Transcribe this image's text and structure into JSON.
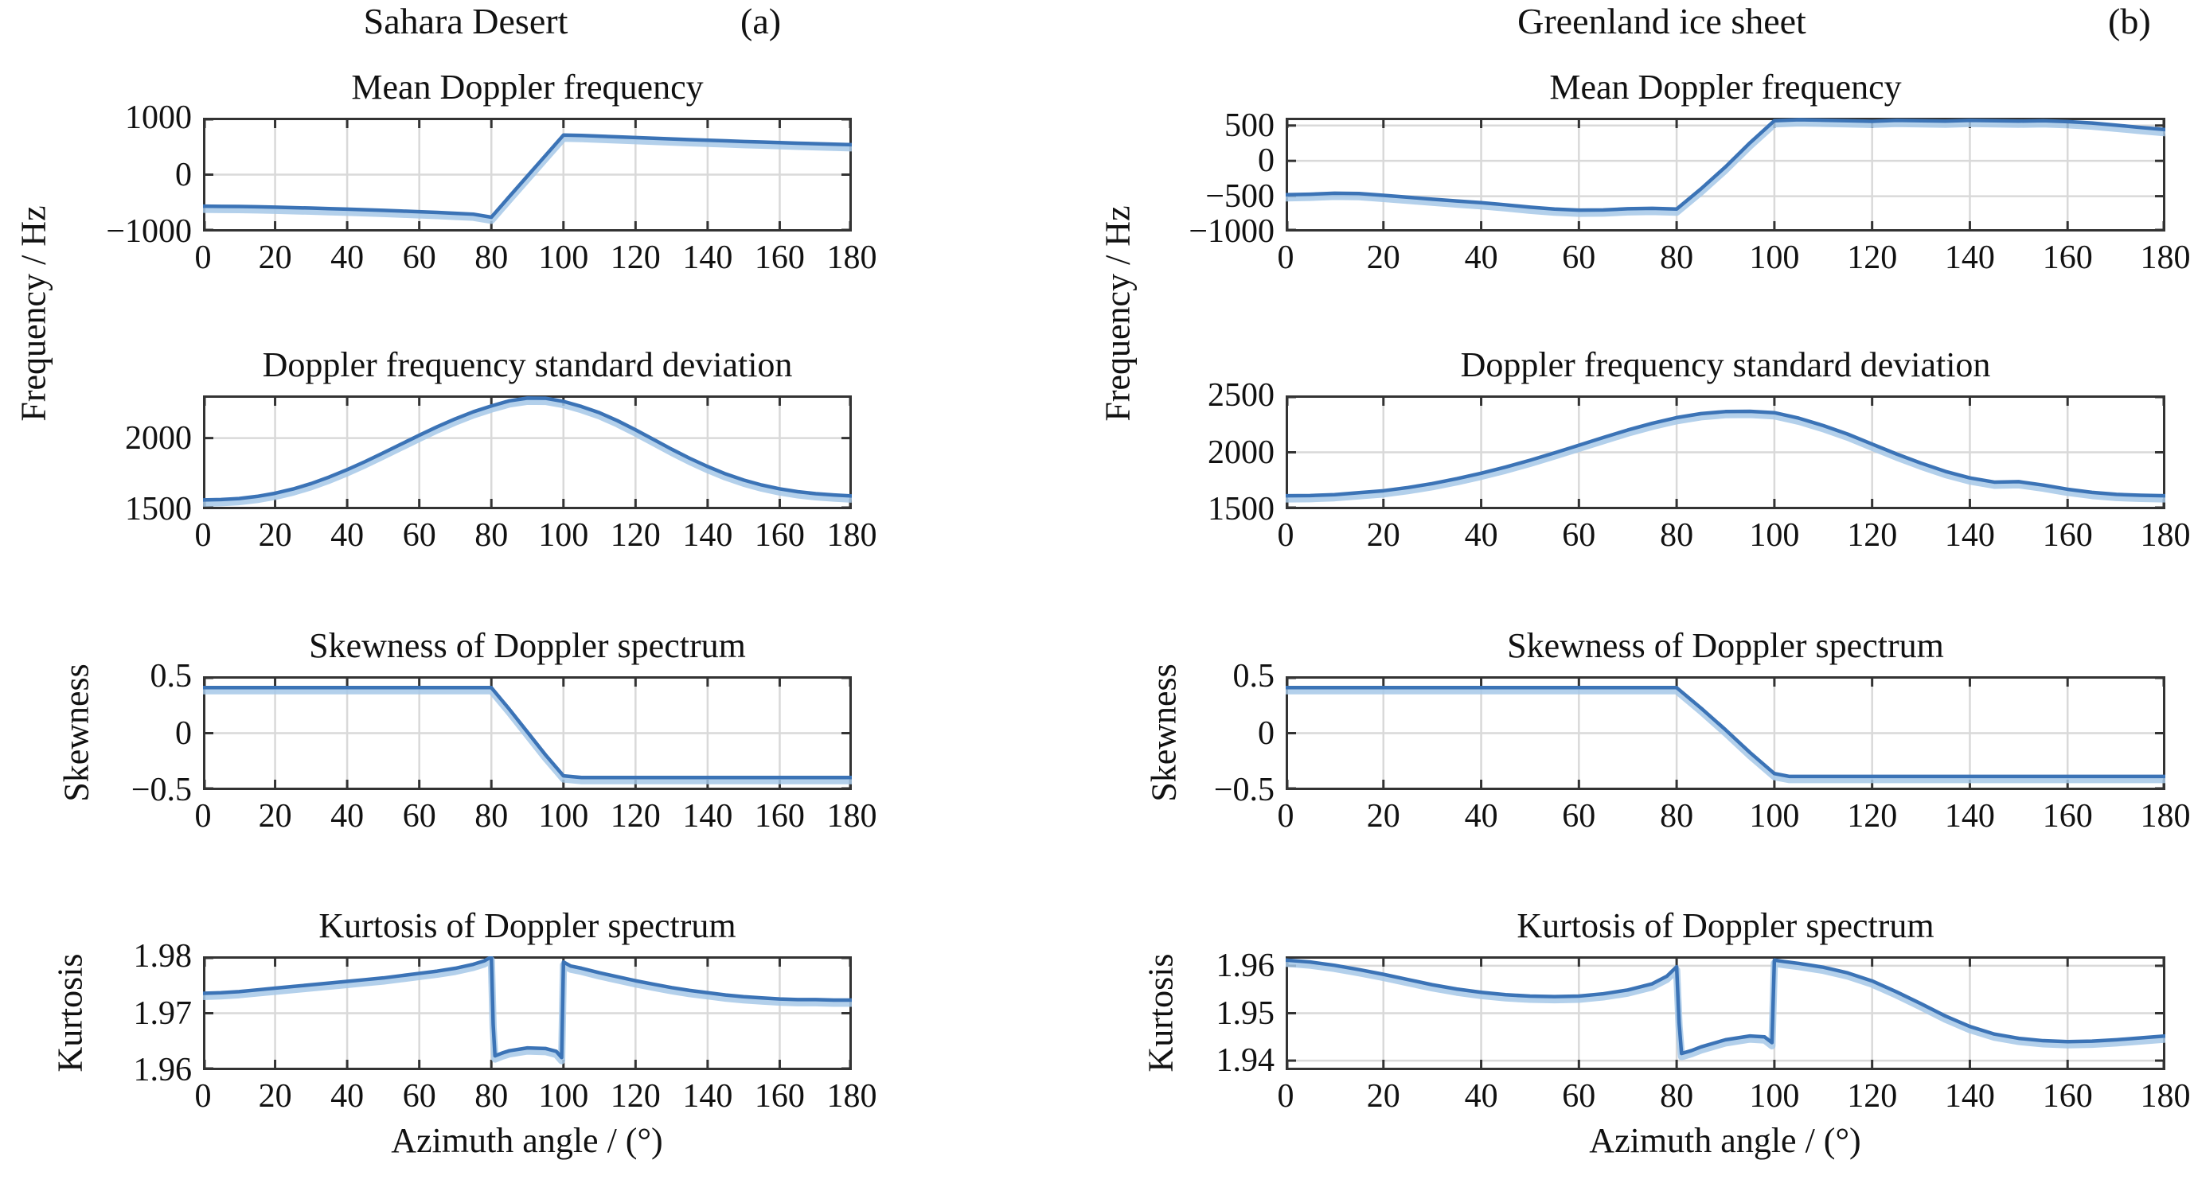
{
  "header": {
    "left": {
      "title": "Sahara Desert",
      "tag": "(a)"
    },
    "right": {
      "title": "Greenland ice sheet",
      "tag": "(b)"
    }
  },
  "axis_labels": {
    "frequency": "Frequency / Hz",
    "skewness": "Skewness",
    "kurtosis": "Kurtosis",
    "azimuth": "Azimuth angle / (°)"
  },
  "style": {
    "line_color": "#3b73b6",
    "line_halo": "#a6c8e8",
    "grid_color": "#d9d9d9",
    "box_color": "#333333",
    "text_color": "#111111",
    "background": "#ffffff"
  },
  "x_axis": {
    "lim": [
      0,
      180
    ],
    "ticks": [
      0,
      20,
      40,
      60,
      80,
      100,
      120,
      140,
      160,
      180
    ],
    "grid": [
      20,
      40,
      60,
      80,
      100,
      120,
      140,
      160
    ]
  },
  "chart_data": [
    {
      "type": "line",
      "panel": "a",
      "title": "Mean Doppler frequency",
      "ylabel": "Frequency / Hz",
      "ylim": [
        -1000,
        1000
      ],
      "yticks": [
        {
          "v": 1000,
          "label": "1000"
        },
        {
          "v": 0,
          "label": "0"
        },
        {
          "v": -1000,
          "label": "−1000"
        }
      ],
      "ygrid": [
        0
      ],
      "x": [
        0,
        5,
        10,
        15,
        20,
        25,
        30,
        35,
        40,
        45,
        50,
        55,
        60,
        65,
        70,
        75,
        80,
        85,
        90,
        95,
        100,
        105,
        110,
        115,
        120,
        125,
        130,
        135,
        140,
        145,
        150,
        155,
        160,
        165,
        170,
        175,
        180
      ],
      "y": [
        -555,
        -558,
        -560,
        -565,
        -572,
        -580,
        -588,
        -597,
        -607,
        -617,
        -628,
        -640,
        -652,
        -665,
        -680,
        -695,
        -748,
        -385,
        -25,
        335,
        695,
        688,
        676,
        664,
        652,
        640,
        628,
        616,
        605,
        594,
        583,
        573,
        563,
        553,
        544,
        535,
        527
      ]
    },
    {
      "type": "line",
      "panel": "a",
      "title": "Doppler frequency standard deviation",
      "ylabel": "Frequency / Hz",
      "ylim": [
        1500,
        2300
      ],
      "yticks": [
        {
          "v": 2000,
          "label": "2000"
        },
        {
          "v": 1500,
          "label": "1500"
        }
      ],
      "ygrid": [
        2000
      ],
      "x": [
        0,
        5,
        10,
        15,
        20,
        25,
        30,
        35,
        40,
        45,
        50,
        55,
        60,
        65,
        70,
        75,
        80,
        85,
        90,
        95,
        100,
        105,
        110,
        115,
        120,
        125,
        130,
        135,
        140,
        145,
        150,
        155,
        160,
        165,
        170,
        175,
        180
      ],
      "y": [
        1565,
        1568,
        1575,
        1590,
        1612,
        1642,
        1680,
        1726,
        1778,
        1835,
        1896,
        1958,
        2020,
        2080,
        2135,
        2185,
        2226,
        2262,
        2281,
        2280,
        2258,
        2222,
        2178,
        2122,
        2058,
        1990,
        1922,
        1858,
        1800,
        1748,
        1705,
        1670,
        1643,
        1623,
        1609,
        1600,
        1593
      ]
    },
    {
      "type": "line",
      "panel": "a",
      "title": "Skewness of Doppler spectrum",
      "ylabel": "Skewness",
      "ylim": [
        -0.5,
        0.5
      ],
      "yticks": [
        {
          "v": 0.5,
          "label": "0.5"
        },
        {
          "v": 0,
          "label": "0"
        },
        {
          "v": -0.5,
          "label": "−0.5"
        }
      ],
      "ygrid": [
        0
      ],
      "x": [
        0,
        80,
        85,
        90,
        95,
        100,
        105,
        180
      ],
      "y": [
        0.4,
        0.4,
        0.21,
        0.01,
        -0.19,
        -0.375,
        -0.39,
        -0.39
      ]
    },
    {
      "type": "line",
      "panel": "a",
      "title": "Kurtosis of Doppler spectrum",
      "ylabel": "Kurtosis",
      "ylim": [
        1.96,
        1.98
      ],
      "yticks": [
        {
          "v": 1.98,
          "label": "1.98"
        },
        {
          "v": 1.97,
          "label": "1.97"
        },
        {
          "v": 1.96,
          "label": "1.96"
        }
      ],
      "ygrid": [
        1.97
      ],
      "x": [
        0,
        5,
        10,
        15,
        20,
        25,
        30,
        35,
        40,
        45,
        50,
        55,
        60,
        65,
        70,
        75,
        78,
        80,
        80.5,
        81,
        83,
        85,
        90,
        95,
        98,
        99.5,
        100,
        102,
        105,
        110,
        115,
        120,
        125,
        130,
        135,
        140,
        145,
        150,
        155,
        160,
        165,
        170,
        175,
        180
      ],
      "y": [
        1.9735,
        1.9736,
        1.9738,
        1.9741,
        1.9744,
        1.9747,
        1.975,
        1.9753,
        1.9756,
        1.9759,
        1.9762,
        1.9766,
        1.977,
        1.9774,
        1.9779,
        1.9786,
        1.9792,
        1.9799,
        1.968,
        1.9625,
        1.963,
        1.9634,
        1.9639,
        1.9638,
        1.9633,
        1.9622,
        1.979,
        1.9783,
        1.9779,
        1.9771,
        1.9764,
        1.9757,
        1.9751,
        1.9745,
        1.974,
        1.9736,
        1.9732,
        1.9729,
        1.9727,
        1.9725,
        1.9724,
        1.9724,
        1.9723,
        1.9723
      ]
    },
    {
      "type": "line",
      "panel": "b",
      "title": "Mean Doppler frequency",
      "ylabel": "Frequency / Hz",
      "ylim": [
        -1000,
        610
      ],
      "yticks": [
        {
          "v": 500,
          "label": "500"
        },
        {
          "v": 0,
          "label": "0"
        },
        {
          "v": -500,
          "label": "−500"
        },
        {
          "v": -1000,
          "label": "−1000"
        }
      ],
      "ygrid": [
        500,
        0,
        -500
      ],
      "x": [
        0,
        5,
        10,
        15,
        20,
        25,
        30,
        35,
        40,
        45,
        50,
        55,
        60,
        65,
        70,
        75,
        80,
        85,
        90,
        95,
        100,
        105,
        110,
        115,
        120,
        125,
        130,
        135,
        140,
        145,
        150,
        155,
        160,
        165,
        170,
        175,
        180
      ],
      "y": [
        -480,
        -472,
        -458,
        -462,
        -488,
        -515,
        -542,
        -568,
        -592,
        -622,
        -655,
        -682,
        -698,
        -694,
        -678,
        -672,
        -682,
        -395,
        -85,
        255,
        568,
        582,
        575,
        568,
        560,
        574,
        568,
        562,
        574,
        568,
        562,
        568,
        555,
        535,
        505,
        472,
        443
      ]
    },
    {
      "type": "line",
      "panel": "b",
      "title": "Doppler frequency standard deviation",
      "ylabel": "Frequency / Hz",
      "ylim": [
        1500,
        2500
      ],
      "yticks": [
        {
          "v": 2500,
          "label": "2500"
        },
        {
          "v": 2000,
          "label": "2000"
        },
        {
          "v": 1500,
          "label": "1500"
        }
      ],
      "ygrid": [
        2000
      ],
      "x": [
        0,
        5,
        10,
        15,
        20,
        25,
        30,
        35,
        40,
        45,
        50,
        55,
        60,
        65,
        70,
        75,
        80,
        85,
        90,
        95,
        100,
        105,
        110,
        115,
        120,
        125,
        130,
        135,
        140,
        145,
        150,
        155,
        160,
        165,
        170,
        175,
        180
      ],
      "y": [
        1618,
        1620,
        1628,
        1645,
        1662,
        1690,
        1725,
        1768,
        1816,
        1870,
        1930,
        1995,
        2062,
        2130,
        2196,
        2255,
        2305,
        2340,
        2358,
        2360,
        2348,
        2300,
        2235,
        2160,
        2072,
        1985,
        1905,
        1832,
        1775,
        1738,
        1742,
        1712,
        1675,
        1648,
        1630,
        1622,
        1618
      ]
    },
    {
      "type": "line",
      "panel": "b",
      "title": "Skewness of Doppler spectrum",
      "ylabel": "Skewness",
      "ylim": [
        -0.5,
        0.5
      ],
      "yticks": [
        {
          "v": 0.5,
          "label": "0.5"
        },
        {
          "v": 0,
          "label": "0"
        },
        {
          "v": -0.5,
          "label": "−0.5"
        }
      ],
      "ygrid": [
        0
      ],
      "x": [
        0,
        80,
        85,
        90,
        95,
        100,
        103,
        180
      ],
      "y": [
        0.4,
        0.4,
        0.22,
        0.03,
        -0.17,
        -0.355,
        -0.38,
        -0.38
      ]
    },
    {
      "type": "line",
      "panel": "b",
      "title": "Kurtosis of Doppler spectrum",
      "ylabel": "Kurtosis",
      "ylim": [
        1.938,
        1.962
      ],
      "yticks": [
        {
          "v": 1.96,
          "label": "1.96"
        },
        {
          "v": 1.95,
          "label": "1.95"
        },
        {
          "v": 1.94,
          "label": "1.94"
        }
      ],
      "ygrid": [
        1.96,
        1.95,
        1.94
      ],
      "x": [
        0,
        5,
        10,
        15,
        20,
        25,
        30,
        35,
        40,
        45,
        50,
        55,
        60,
        65,
        70,
        75,
        78,
        80,
        80.5,
        81,
        83,
        85,
        90,
        95,
        98,
        99.5,
        100,
        102,
        105,
        110,
        115,
        120,
        125,
        130,
        135,
        140,
        145,
        150,
        155,
        160,
        165,
        170,
        175,
        180
      ],
      "y": [
        1.9612,
        1.9608,
        1.9601,
        1.9592,
        1.9582,
        1.9571,
        1.956,
        1.9551,
        1.9544,
        1.9539,
        1.9536,
        1.9535,
        1.9536,
        1.9541,
        1.9549,
        1.9562,
        1.9578,
        1.9598,
        1.948,
        1.9415,
        1.9421,
        1.9429,
        1.9444,
        1.9452,
        1.945,
        1.9438,
        1.9612,
        1.9609,
        1.9605,
        1.9597,
        1.9585,
        1.9568,
        1.9545,
        1.952,
        1.9494,
        1.9472,
        1.9456,
        1.9447,
        1.9442,
        1.944,
        1.9441,
        1.9444,
        1.9448,
        1.9452
      ]
    }
  ]
}
